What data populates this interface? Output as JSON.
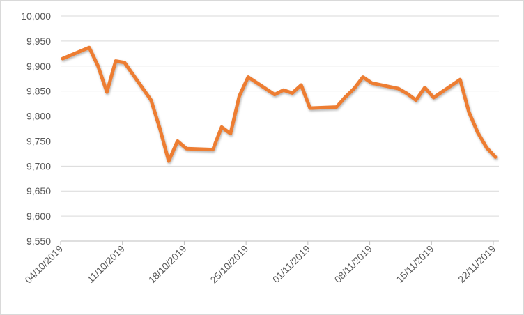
{
  "chart_data": {
    "type": "line",
    "title": "",
    "xlabel": "",
    "ylabel": "",
    "ylim": [
      9550,
      10000
    ],
    "y_ticks": [
      9550,
      9600,
      9650,
      9700,
      9750,
      9800,
      9850,
      9900,
      9950,
      10000
    ],
    "y_tick_labels": [
      "9,550",
      "9,600",
      "9,650",
      "9,700",
      "9,750",
      "9,800",
      "9,850",
      "9,900",
      "9,950",
      "10,000"
    ],
    "x_ticks": [
      "04/10/2019",
      "11/10/2019",
      "18/10/2019",
      "25/10/2019",
      "01/11/2019",
      "08/11/2019",
      "15/11/2019",
      "22/11/2019"
    ],
    "grid": "horizontal",
    "line_color": "#ED7D31",
    "series": [
      {
        "x": [
          "04/10/2019",
          "07/10/2019",
          "08/10/2019",
          "09/10/2019",
          "10/10/2019",
          "11/10/2019",
          "14/10/2019",
          "15/10/2019",
          "16/10/2019",
          "17/10/2019",
          "18/10/2019",
          "21/10/2019",
          "22/10/2019",
          "23/10/2019",
          "24/10/2019",
          "25/10/2019",
          "28/10/2019",
          "29/10/2019",
          "30/10/2019",
          "31/10/2019",
          "01/11/2019",
          "04/11/2019",
          "05/11/2019",
          "06/11/2019",
          "07/11/2019",
          "08/11/2019",
          "11/11/2019",
          "12/11/2019",
          "13/11/2019",
          "14/11/2019",
          "15/11/2019",
          "18/11/2019",
          "19/11/2019",
          "20/11/2019",
          "21/11/2019",
          "22/11/2019"
        ],
        "values": [
          9915,
          9937,
          9900,
          9848,
          9910,
          9907,
          9832,
          9775,
          9710,
          9750,
          9735,
          9733,
          9778,
          9765,
          9840,
          9878,
          9843,
          9852,
          9846,
          9862,
          9816,
          9818,
          9838,
          9855,
          9878,
          9866,
          9855,
          9845,
          9832,
          9857,
          9837,
          9873,
          9808,
          9767,
          9737,
          9718
        ]
      }
    ]
  }
}
